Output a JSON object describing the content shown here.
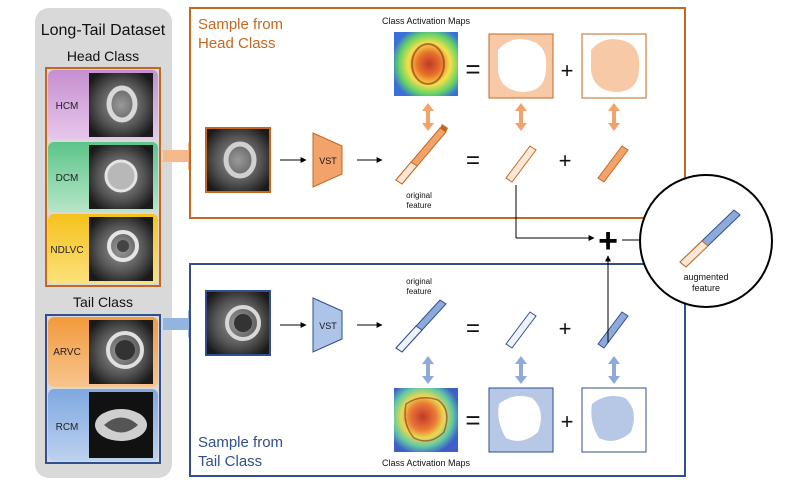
{
  "dataset": {
    "title": "Long-Tail Dataset",
    "head_label": "Head Class",
    "tail_label": "Tail Class",
    "head_classes": [
      "HCM",
      "DCM",
      "NDLVC"
    ],
    "tail_classes": [
      "ARVC",
      "RCM"
    ]
  },
  "head_panel": {
    "title_line1": "Sample from",
    "title_line2": "Head Class",
    "cam_label": "Class Activation Maps",
    "vst": "VST",
    "feature_line1": "original",
    "feature_line2": "feature",
    "equals": "=",
    "plus": "+"
  },
  "tail_panel": {
    "title_line1": "Sample from",
    "title_line2": "Tail Class",
    "cam_label": "Class Activation Maps",
    "vst": "VST",
    "feature_line1": "original",
    "feature_line2": "feature",
    "equals": "=",
    "plus": "+"
  },
  "combine": {
    "plus": "+",
    "out_line1": "augmented",
    "out_line2": "feature"
  },
  "colors": {
    "head": "#c5671f",
    "head_fill": "#f2a36b",
    "head_light": "#f8c9a6",
    "tail": "#2f4f8f",
    "tail_fill": "#8eaadb",
    "tail_light": "#b7c7e6",
    "panel_gray": "#d9d9d9"
  }
}
